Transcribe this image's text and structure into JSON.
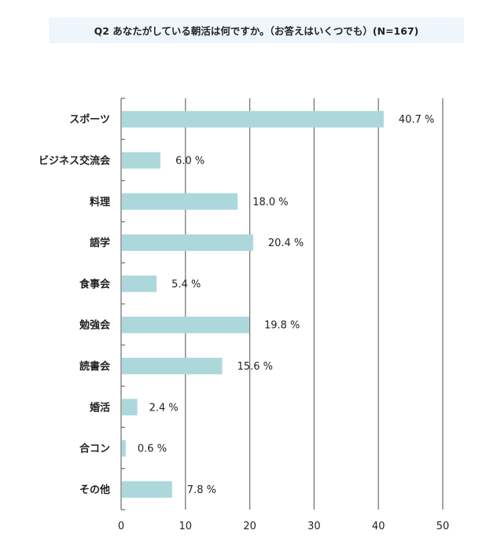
{
  "chart_data": {
    "type": "bar",
    "orientation": "horizontal",
    "title": "Q2 あなたがしている朝活は何ですか。（お答えはいくつでも）(N=167)",
    "categories": [
      "スポーツ",
      "ビジネス交流会",
      "料理",
      "語学",
      "食事会",
      "勉強会",
      "読書会",
      "婚活",
      "合コン",
      "その他"
    ],
    "values": [
      40.7,
      6.0,
      18.0,
      20.4,
      5.4,
      19.8,
      15.6,
      2.4,
      0.6,
      7.8
    ],
    "value_labels": [
      "40.7 %",
      "6.0 %",
      "18.0 %",
      "20.4 %",
      "5.4 %",
      "19.8 %",
      "15.6 %",
      "2.4 %",
      "0.6 %",
      "7.8 %"
    ],
    "xlim": [
      0,
      50
    ],
    "xticks": [
      "0",
      "10",
      "20",
      "30",
      "40",
      "50"
    ],
    "xlabel": "",
    "ylabel": "",
    "grid": true,
    "bar_color": "#acd8dc",
    "grid_color": "#777777"
  }
}
